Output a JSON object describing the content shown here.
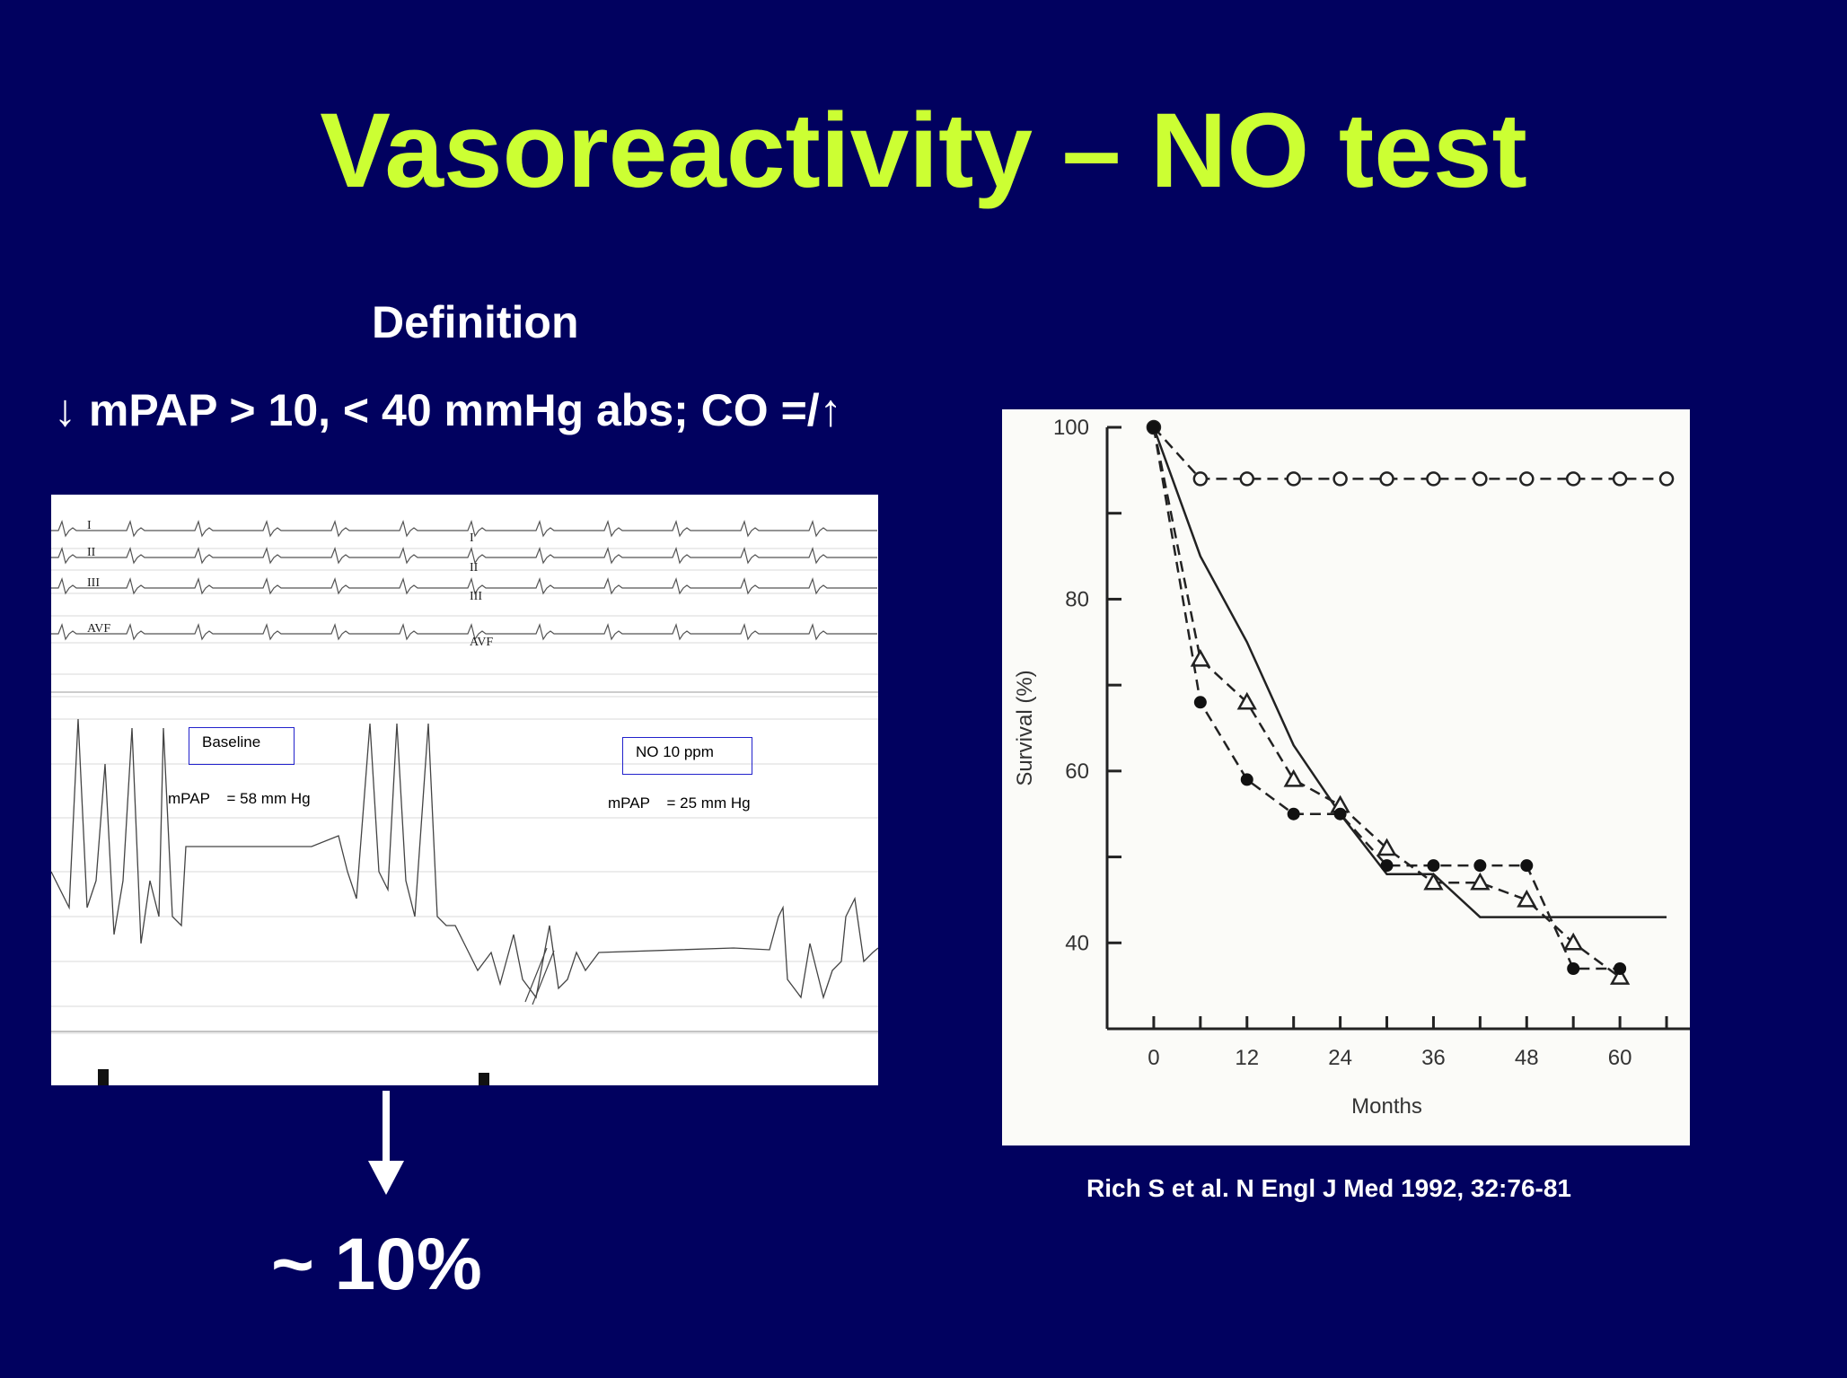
{
  "title": "Vasoreactivity – NO test",
  "definition": {
    "heading": "Definition",
    "criteria": "↓ mPAP > 10, < 40 mmHg abs; CO =/↑"
  },
  "tracing": {
    "ecg_leads": [
      "I",
      "II",
      "III",
      "AVF"
    ],
    "baseline": {
      "box_label": "Baseline",
      "mpap_label": "mPAP    = 58 mm Hg"
    },
    "no_test": {
      "box_label": "NO 10 ppm",
      "mpap_label": "mPAP    = 25 mm Hg"
    }
  },
  "result": {
    "arrow": "↓",
    "percentage": "~ 10%"
  },
  "citation": "Rich S et al. N Engl J Med 1992, 32:76-81",
  "colors": {
    "background": "#01015f",
    "title": "#ccff33",
    "text": "#ffffff"
  },
  "chart_data": {
    "type": "line",
    "xlabel": "Months",
    "ylabel": "Survival (%)",
    "x_ticks": [
      0,
      12,
      24,
      36,
      48,
      60
    ],
    "y_ticks": [
      40,
      60,
      80,
      100
    ],
    "xlim": [
      -6,
      69
    ],
    "ylim": [
      30,
      100
    ],
    "series": [
      {
        "marker": "open-circle",
        "line": "dashed",
        "x": [
          0,
          6,
          12,
          18,
          24,
          30,
          36,
          42,
          48,
          54,
          60,
          66
        ],
        "y": [
          100,
          94,
          94,
          94,
          94,
          94,
          94,
          94,
          94,
          94,
          94,
          94
        ]
      },
      {
        "marker": "none",
        "line": "solid",
        "x": [
          0,
          6,
          12,
          18,
          24,
          30,
          36,
          42,
          48,
          54,
          60,
          66
        ],
        "y": [
          100,
          85,
          75,
          63,
          55,
          48,
          48,
          43,
          43,
          43,
          43,
          43
        ]
      },
      {
        "marker": "open-triangle",
        "line": "dashed",
        "x": [
          0,
          6,
          12,
          18,
          24,
          30,
          36,
          42,
          48,
          54,
          60
        ],
        "y": [
          100,
          73,
          68,
          59,
          56,
          51,
          47,
          47,
          45,
          40,
          36
        ]
      },
      {
        "marker": "filled-circle",
        "line": "dashed",
        "x": [
          0,
          6,
          12,
          18,
          24,
          30,
          36,
          42,
          48,
          54,
          60
        ],
        "y": [
          100,
          68,
          59,
          55,
          55,
          49,
          49,
          49,
          49,
          37,
          37
        ]
      }
    ]
  }
}
